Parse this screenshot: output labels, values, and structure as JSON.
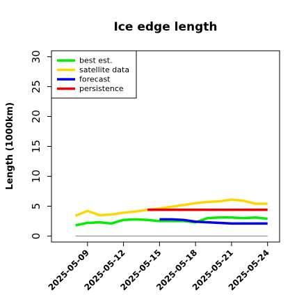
{
  "chart_data": {
    "type": "line",
    "title": "Ice edge length",
    "xlabel": "",
    "ylabel": "Length (1000km)",
    "ylim": [
      -1,
      31
    ],
    "xlim": [
      "2025-05-06",
      "2025-05-25"
    ],
    "yticks": [
      "0",
      "5",
      "10",
      "15",
      "20",
      "25",
      "30"
    ],
    "xticks": [
      "2025-05-09",
      "2025-05-12",
      "2025-05-15",
      "2025-05-18",
      "2025-05-21",
      "2025-05-24"
    ],
    "highlighted_xtick": "2025-05-15",
    "highlight_color": "#228b22",
    "grid": false,
    "legend_position": "top-left",
    "baseline": {
      "y": 0,
      "from": "2025-05-08",
      "to": "2025-05-24",
      "color": "#808080"
    },
    "series": [
      {
        "name": "best est.",
        "color": "#00ee00",
        "points": [
          [
            "2025-05-08",
            1.8
          ],
          [
            "2025-05-09",
            2.2
          ],
          [
            "2025-05-10",
            2.3
          ],
          [
            "2025-05-11",
            2.1
          ],
          [
            "2025-05-12",
            2.7
          ],
          [
            "2025-05-13",
            2.8
          ],
          [
            "2025-05-14",
            2.7
          ],
          [
            "2025-05-15",
            2.5
          ],
          [
            "2025-05-16",
            2.5
          ],
          [
            "2025-05-17",
            2.5
          ],
          [
            "2025-05-18",
            2.3
          ],
          [
            "2025-05-19",
            3.0
          ],
          [
            "2025-05-20",
            3.1
          ],
          [
            "2025-05-21",
            3.1
          ],
          [
            "2025-05-22",
            3.0
          ],
          [
            "2025-05-23",
            3.1
          ],
          [
            "2025-05-24",
            2.9
          ]
        ]
      },
      {
        "name": "satellite data",
        "color": "#ffd700",
        "points": [
          [
            "2025-05-08",
            3.4
          ],
          [
            "2025-05-09",
            4.2
          ],
          [
            "2025-05-10",
            3.5
          ],
          [
            "2025-05-11",
            3.6
          ],
          [
            "2025-05-12",
            3.9
          ],
          [
            "2025-05-13",
            4.1
          ],
          [
            "2025-05-14",
            4.4
          ],
          [
            "2025-05-15",
            4.6
          ],
          [
            "2025-05-16",
            4.9
          ],
          [
            "2025-05-17",
            5.2
          ],
          [
            "2025-05-18",
            5.5
          ],
          [
            "2025-05-19",
            5.7
          ],
          [
            "2025-05-20",
            5.8
          ],
          [
            "2025-05-21",
            6.1
          ],
          [
            "2025-05-22",
            5.9
          ],
          [
            "2025-05-23",
            5.4
          ],
          [
            "2025-05-24",
            5.4
          ]
        ]
      },
      {
        "name": "forecast",
        "color": "#0000ee",
        "points": [
          [
            "2025-05-15",
            2.8
          ],
          [
            "2025-05-16",
            2.8
          ],
          [
            "2025-05-17",
            2.7
          ],
          [
            "2025-05-18",
            2.4
          ],
          [
            "2025-05-19",
            2.3
          ],
          [
            "2025-05-20",
            2.2
          ],
          [
            "2025-05-21",
            2.1
          ],
          [
            "2025-05-22",
            2.1
          ],
          [
            "2025-05-23",
            2.1
          ],
          [
            "2025-05-24",
            2.1
          ]
        ]
      },
      {
        "name": "persistence",
        "color": "#ee0000",
        "points": [
          [
            "2025-05-14",
            4.4
          ],
          [
            "2025-05-15",
            4.4
          ],
          [
            "2025-05-16",
            4.4
          ],
          [
            "2025-05-17",
            4.4
          ],
          [
            "2025-05-18",
            4.4
          ],
          [
            "2025-05-19",
            4.4
          ],
          [
            "2025-05-20",
            4.4
          ],
          [
            "2025-05-21",
            4.4
          ],
          [
            "2025-05-22",
            4.4
          ],
          [
            "2025-05-23",
            4.4
          ],
          [
            "2025-05-24",
            4.4
          ]
        ]
      }
    ]
  }
}
